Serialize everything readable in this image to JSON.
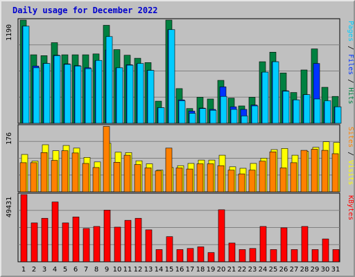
{
  "title": "Daily usage for December 2022",
  "chart_data": {
    "type": "bar",
    "categories": [
      "1",
      "2",
      "3",
      "4",
      "5",
      "6",
      "7",
      "8",
      "9",
      "10",
      "11",
      "12",
      "13",
      "14",
      "15",
      "16",
      "17",
      "18",
      "19",
      "20",
      "21",
      "22",
      "23",
      "24",
      "25",
      "26",
      "27",
      "28",
      "29",
      "30",
      "31"
    ],
    "weekend_days": [
      "3",
      "4",
      "10",
      "11",
      "17",
      "18",
      "24",
      "25",
      "31"
    ],
    "panels": [
      {
        "name": "hits_files_pages",
        "max_label": "1190",
        "ylim": [
          0,
          1190
        ],
        "right_labels": [
          {
            "text": "Pages",
            "color": "#00ccff"
          },
          {
            "text": " / ",
            "color": "#000000"
          },
          {
            "text": "Files",
            "color": "#0033ff"
          },
          {
            "text": " / ",
            "color": "#000000"
          },
          {
            "text": "Hits",
            "color": "#008040"
          }
        ],
        "series": [
          {
            "name": "Hits",
            "color": "#008040",
            "values": [
              1190,
              790,
              780,
              930,
              790,
              790,
              790,
              800,
              1130,
              850,
              785,
              750,
              700,
              255,
              1200,
              400,
              170,
              300,
              280,
              495,
              290,
              200,
              300,
              710,
              820,
              580,
              355,
              615,
              858,
              415,
              310
            ]
          },
          {
            "name": "Files",
            "color": "#0033ff",
            "values": [
              1120,
              660,
              690,
              785,
              685,
              665,
              640,
              720,
              845,
              640,
              675,
              685,
              610,
              180,
              1080,
              270,
              140,
              175,
              160,
              420,
              190,
              160,
              210,
              585,
              710,
              375,
              270,
              330,
              690,
              240,
              190
            ]
          },
          {
            "name": "Pages",
            "color": "#00ccff",
            "values": [
              1120,
              640,
              690,
              780,
              680,
              660,
              630,
              725,
              1000,
              640,
              670,
              690,
              610,
              180,
              1080,
              260,
              115,
              170,
              150,
              310,
              160,
              85,
              200,
              590,
              710,
              370,
              270,
              330,
              280,
              260,
              190
            ]
          }
        ]
      },
      {
        "name": "visits_sites",
        "max_label": "176",
        "ylim": [
          0,
          176
        ],
        "right_labels": [
          {
            "text": "Sites",
            "color": "#ff8000"
          },
          {
            "text": " / ",
            "color": "#000000"
          },
          {
            "text": "Visits",
            "color": "#ffff00"
          }
        ],
        "series": [
          {
            "name": "Visits",
            "color": "#ffff00",
            "values": [
              100,
              82,
              126,
              110,
              124,
              117,
              92,
              80,
              130,
              106,
              105,
              83,
              75,
              58,
              65,
              70,
              76,
              85,
              85,
              98,
              67,
              63,
              76,
              90,
              113,
              116,
              98,
              108,
              119,
              134,
              132
            ]
          },
          {
            "name": "Sites",
            "color": "#ff8000",
            "values": [
              78,
              78,
              105,
              84,
              110,
              104,
              76,
              65,
              175,
              79,
              98,
              73,
              64,
              56,
              117,
              64,
              61,
              75,
              75,
              70,
              58,
              48,
              58,
              82,
              107,
              64,
              78,
              111,
              114,
              111,
              102
            ]
          }
        ]
      },
      {
        "name": "kbytes",
        "max_label": "49431",
        "ylim": [
          0,
          49431
        ],
        "right_labels": [
          {
            "text": "KBytes",
            "color": "#ff0000"
          }
        ],
        "series": [
          {
            "name": "KBytes",
            "color": "#ff0000",
            "values": [
              49431,
              28600,
              32000,
              44000,
              28600,
              33000,
              24500,
              26000,
              38000,
              25500,
              30500,
              32000,
              23500,
              9000,
              18500,
              9000,
              9800,
              11000,
              6800,
              38300,
              13800,
              9000,
              9800,
              26000,
              9000,
              25000,
              9000,
              26000,
              9000,
              16800,
              9000
            ]
          }
        ]
      }
    ]
  }
}
